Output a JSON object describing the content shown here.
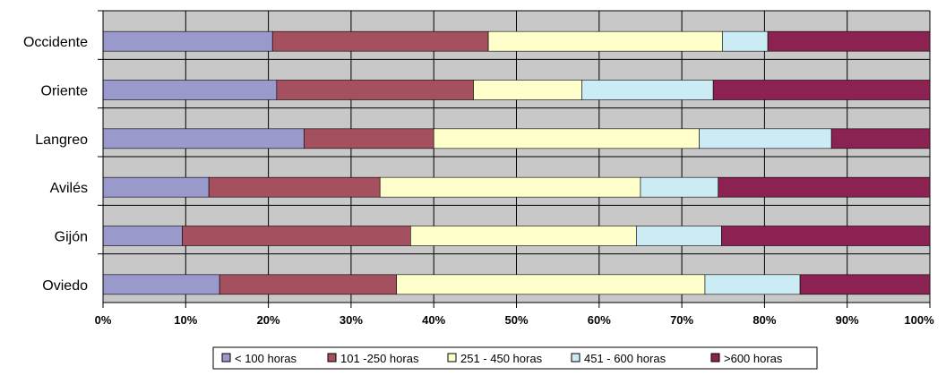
{
  "chart_data": {
    "type": "bar",
    "orientation": "horizontal",
    "stacking": "percent",
    "categories": [
      "Occidente",
      "Oriente",
      "Langreo",
      "Avilés",
      "Gijón",
      "Oviedo"
    ],
    "series": [
      {
        "name": "< 100 horas",
        "color": "#9999cc",
        "values": [
          20.5,
          21.0,
          24.3,
          12.8,
          9.6,
          14.1
        ]
      },
      {
        "name": "101 -250 horas",
        "color": "#a5505e",
        "values": [
          26.1,
          23.8,
          15.7,
          20.7,
          27.6,
          21.4
        ]
      },
      {
        "name": "251 - 450 horas",
        "color": "#ffffcc",
        "values": [
          28.3,
          13.1,
          32.1,
          31.5,
          27.3,
          37.3
        ]
      },
      {
        "name": "451 - 600 horas",
        "color": "#ccecf5",
        "values": [
          5.5,
          15.9,
          16.0,
          9.4,
          10.3,
          11.5
        ]
      },
      {
        "name": ">600 horas",
        "color": "#8b2252",
        "values": [
          19.6,
          26.2,
          11.9,
          25.6,
          25.2,
          15.7
        ]
      }
    ],
    "x_ticks": [
      "0%",
      "10%",
      "20%",
      "30%",
      "40%",
      "50%",
      "60%",
      "70%",
      "80%",
      "90%",
      "100%"
    ],
    "xlim": [
      0,
      100
    ],
    "grid": true,
    "plot_background": "#c8c8c8",
    "legend_position": "bottom"
  }
}
